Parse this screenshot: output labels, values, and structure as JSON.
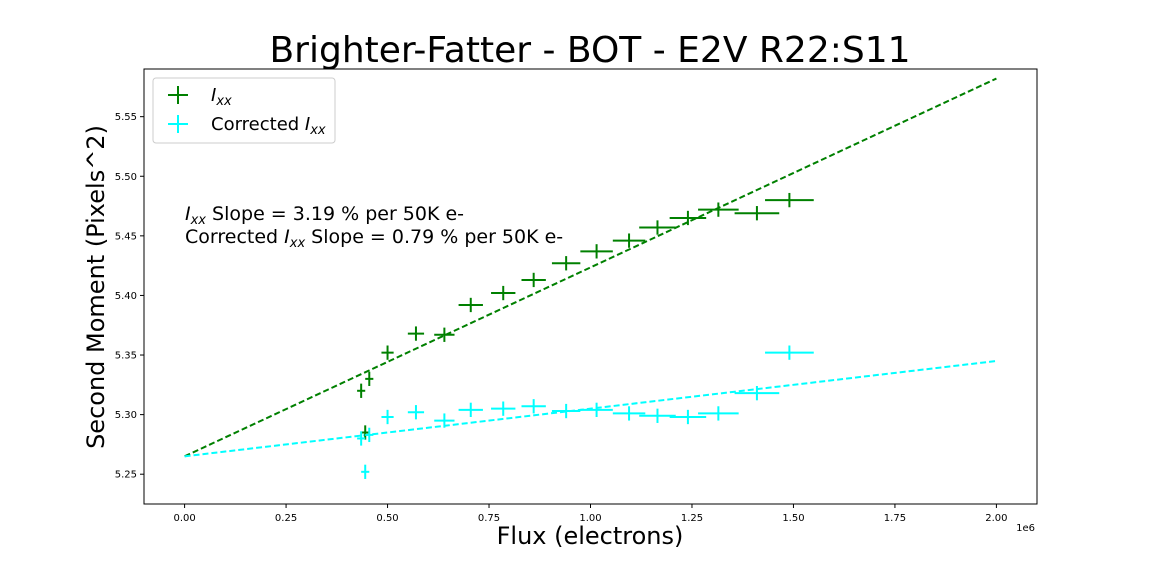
{
  "chart_data": {
    "type": "scatter",
    "title": "Brighter-Fatter - BOT - E2V R22:S11",
    "xlabel": "Flux (electrons)",
    "ylabel": "Second Moment (Pixels^2)",
    "x_offset_text": "1e6",
    "xlim": [
      -0.1,
      2.1
    ],
    "ylim": [
      5.225,
      5.59
    ],
    "x_ticks": [
      0.0,
      0.25,
      0.5,
      0.75,
      1.0,
      1.25,
      1.5,
      1.75,
      2.0
    ],
    "x_tick_labels": [
      "0.00",
      "0.25",
      "0.50",
      "0.75",
      "1.00",
      "1.25",
      "1.50",
      "1.75",
      "2.00"
    ],
    "y_ticks": [
      5.25,
      5.3,
      5.35,
      5.4,
      5.45,
      5.5,
      5.55
    ],
    "y_tick_labels": [
      "5.25",
      "5.30",
      "5.35",
      "5.40",
      "5.45",
      "5.50",
      "5.55"
    ],
    "grid": false,
    "legend_position": "top-left",
    "legend": [
      {
        "label_main": "I",
        "label_sub": "xx",
        "prefix": "",
        "color": "#008000"
      },
      {
        "label_main": "I",
        "label_sub": "xx",
        "prefix": "Corrected ",
        "color": "#00ffff"
      }
    ],
    "annotations": [
      {
        "sym": "I",
        "sub": "xx",
        "prefix": "",
        "text": " Slope = 3.19 % per 50K e-"
      },
      {
        "sym": "I",
        "sub": "xx",
        "prefix": "Corrected ",
        "text": " Slope = 0.79 % per 50K e-"
      }
    ],
    "series": [
      {
        "color": "#008000",
        "points": [
          {
            "x": 0.435,
            "y": 5.32,
            "xerr": 0.01,
            "yerr": 0.006
          },
          {
            "x": 0.445,
            "y": 5.285,
            "xerr": 0.01,
            "yerr": 0.006
          },
          {
            "x": 0.455,
            "y": 5.33,
            "xerr": 0.01,
            "yerr": 0.006
          },
          {
            "x": 0.5,
            "y": 5.352,
            "xerr": 0.015,
            "yerr": 0.006
          },
          {
            "x": 0.57,
            "y": 5.368,
            "xerr": 0.02,
            "yerr": 0.006
          },
          {
            "x": 0.64,
            "y": 5.367,
            "xerr": 0.025,
            "yerr": 0.006
          },
          {
            "x": 0.705,
            "y": 5.392,
            "xerr": 0.03,
            "yerr": 0.006
          },
          {
            "x": 0.785,
            "y": 5.402,
            "xerr": 0.03,
            "yerr": 0.006
          },
          {
            "x": 0.86,
            "y": 5.413,
            "xerr": 0.03,
            "yerr": 0.006
          },
          {
            "x": 0.94,
            "y": 5.427,
            "xerr": 0.035,
            "yerr": 0.006
          },
          {
            "x": 1.015,
            "y": 5.437,
            "xerr": 0.04,
            "yerr": 0.006
          },
          {
            "x": 1.095,
            "y": 5.446,
            "xerr": 0.04,
            "yerr": 0.006
          },
          {
            "x": 1.165,
            "y": 5.457,
            "xerr": 0.045,
            "yerr": 0.006
          },
          {
            "x": 1.24,
            "y": 5.465,
            "xerr": 0.045,
            "yerr": 0.006
          },
          {
            "x": 1.315,
            "y": 5.472,
            "xerr": 0.05,
            "yerr": 0.006
          },
          {
            "x": 1.41,
            "y": 5.469,
            "xerr": 0.055,
            "yerr": 0.006
          },
          {
            "x": 1.49,
            "y": 5.48,
            "xerr": 0.06,
            "yerr": 0.006
          }
        ],
        "fit": {
          "x0": 0.0,
          "y0": 5.265,
          "x1": 2.0,
          "y1": 5.582
        }
      },
      {
        "color": "#00ffff",
        "points": [
          {
            "x": 0.435,
            "y": 5.28,
            "xerr": 0.01,
            "yerr": 0.006
          },
          {
            "x": 0.445,
            "y": 5.252,
            "xerr": 0.01,
            "yerr": 0.006
          },
          {
            "x": 0.455,
            "y": 5.283,
            "xerr": 0.01,
            "yerr": 0.006
          },
          {
            "x": 0.5,
            "y": 5.298,
            "xerr": 0.015,
            "yerr": 0.006
          },
          {
            "x": 0.57,
            "y": 5.302,
            "xerr": 0.02,
            "yerr": 0.006
          },
          {
            "x": 0.64,
            "y": 5.295,
            "xerr": 0.025,
            "yerr": 0.006
          },
          {
            "x": 0.705,
            "y": 5.304,
            "xerr": 0.03,
            "yerr": 0.006
          },
          {
            "x": 0.785,
            "y": 5.305,
            "xerr": 0.03,
            "yerr": 0.006
          },
          {
            "x": 0.86,
            "y": 5.307,
            "xerr": 0.03,
            "yerr": 0.006
          },
          {
            "x": 0.94,
            "y": 5.303,
            "xerr": 0.035,
            "yerr": 0.006
          },
          {
            "x": 1.015,
            "y": 5.304,
            "xerr": 0.04,
            "yerr": 0.006
          },
          {
            "x": 1.095,
            "y": 5.301,
            "xerr": 0.04,
            "yerr": 0.006
          },
          {
            "x": 1.165,
            "y": 5.299,
            "xerr": 0.045,
            "yerr": 0.006
          },
          {
            "x": 1.24,
            "y": 5.298,
            "xerr": 0.045,
            "yerr": 0.006
          },
          {
            "x": 1.315,
            "y": 5.301,
            "xerr": 0.05,
            "yerr": 0.006
          },
          {
            "x": 1.41,
            "y": 5.318,
            "xerr": 0.055,
            "yerr": 0.006
          },
          {
            "x": 1.49,
            "y": 5.352,
            "xerr": 0.06,
            "yerr": 0.006
          }
        ],
        "fit": {
          "x0": 0.0,
          "y0": 5.265,
          "x1": 2.0,
          "y1": 5.345
        }
      }
    ]
  }
}
